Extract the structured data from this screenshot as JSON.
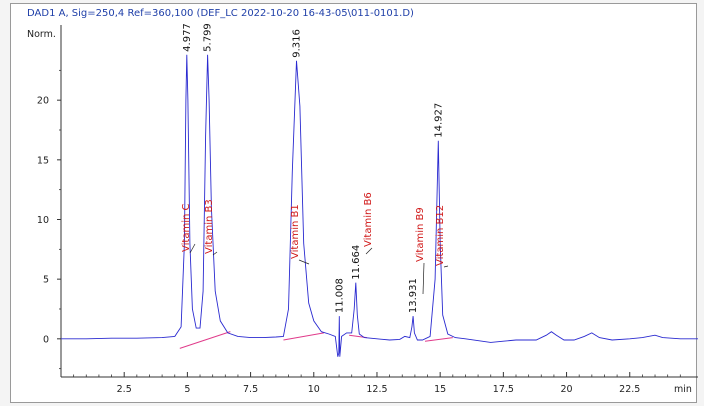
{
  "chart_data": {
    "type": "line",
    "title": "DAD1 A, Sig=250,4 Ref=360,100 (DEF_LC 2022-10-20 16-43-05\\011-0101.D)",
    "ylabel": "Norm.",
    "xlabel": "min",
    "xlim": [
      0,
      25.2
    ],
    "ylim": [
      -3.2,
      26.3
    ],
    "x_ticks": [
      "2.5",
      "5",
      "7.5",
      "10",
      "12.5",
      "15",
      "17.5",
      "20",
      "22.5"
    ],
    "x_tick_values": [
      2.5,
      5,
      7.5,
      10,
      12.5,
      15,
      17.5,
      20,
      22.5
    ],
    "y_ticks": [
      "0",
      "5",
      "10",
      "15",
      "20"
    ],
    "y_tick_values": [
      0,
      5,
      10,
      15,
      20
    ],
    "colors": {
      "trace": "#2a2ad0",
      "baseline": "#e03a8a",
      "compound_label": "#d01818",
      "title": "#1f3fa8"
    },
    "peaks": [
      {
        "label": "4.977",
        "rt": 4.977,
        "height": 23.8
      },
      {
        "label": "5.799",
        "rt": 5.799,
        "height": 23.8
      },
      {
        "label": "9.316",
        "rt": 9.316,
        "height": 23.3
      },
      {
        "label": "11.008",
        "rt": 11.008,
        "height": 1.9
      },
      {
        "label": "11.664",
        "rt": 11.664,
        "height": 4.7
      },
      {
        "label": "13.931",
        "rt": 13.931,
        "height": 1.9
      },
      {
        "label": "14.927",
        "rt": 14.927,
        "height": 16.6
      }
    ],
    "compounds": [
      {
        "name": "Vitamin C",
        "rt": 4.977
      },
      {
        "name": "Vitamin B3",
        "rt": 5.799
      },
      {
        "name": "Vitamin B1",
        "rt": 9.316
      },
      {
        "name": "Vitamin B6",
        "rt": 11.664
      },
      {
        "name": "Vitamin B9",
        "rt": 13.931
      },
      {
        "name": "Vitamin B12",
        "rt": 14.927
      }
    ],
    "trace": [
      [
        0.0,
        0.0
      ],
      [
        1.0,
        0.0
      ],
      [
        2.0,
        0.05
      ],
      [
        3.0,
        0.05
      ],
      [
        4.0,
        0.1
      ],
      [
        4.5,
        0.2
      ],
      [
        4.75,
        1.0
      ],
      [
        4.88,
        8.0
      ],
      [
        4.94,
        20.0
      ],
      [
        4.977,
        23.8
      ],
      [
        5.02,
        20.0
      ],
      [
        5.1,
        8.0
      ],
      [
        5.2,
        2.5
      ],
      [
        5.35,
        0.9
      ],
      [
        5.5,
        0.9
      ],
      [
        5.62,
        4.0
      ],
      [
        5.72,
        17.0
      ],
      [
        5.799,
        23.8
      ],
      [
        5.86,
        20.0
      ],
      [
        5.95,
        11.0
      ],
      [
        6.1,
        4.0
      ],
      [
        6.3,
        1.5
      ],
      [
        6.6,
        0.5
      ],
      [
        7.0,
        0.2
      ],
      [
        7.5,
        0.1
      ],
      [
        8.0,
        0.1
      ],
      [
        8.5,
        0.15
      ],
      [
        8.8,
        0.2
      ],
      [
        9.0,
        2.5
      ],
      [
        9.15,
        14.0
      ],
      [
        9.316,
        23.3
      ],
      [
        9.45,
        19.5
      ],
      [
        9.6,
        8.0
      ],
      [
        9.8,
        3.0
      ],
      [
        10.0,
        1.5
      ],
      [
        10.3,
        0.6
      ],
      [
        10.6,
        0.4
      ],
      [
        10.85,
        0.2
      ],
      [
        10.95,
        -1.5
      ],
      [
        10.99,
        -1.2
      ],
      [
        11.008,
        1.9
      ],
      [
        11.03,
        -1.5
      ],
      [
        11.1,
        0.2
      ],
      [
        11.3,
        0.5
      ],
      [
        11.5,
        0.5
      ],
      [
        11.6,
        2.5
      ],
      [
        11.664,
        4.7
      ],
      [
        11.72,
        2.0
      ],
      [
        11.8,
        0.4
      ],
      [
        12.0,
        0.1
      ],
      [
        12.5,
        0.0
      ],
      [
        13.0,
        -0.1
      ],
      [
        13.4,
        -0.05
      ],
      [
        13.6,
        0.2
      ],
      [
        13.8,
        0.1
      ],
      [
        13.88,
        1.0
      ],
      [
        13.931,
        1.9
      ],
      [
        13.98,
        0.5
      ],
      [
        14.1,
        -0.1
      ],
      [
        14.3,
        -0.1
      ],
      [
        14.6,
        0.2
      ],
      [
        14.8,
        5.0
      ],
      [
        14.927,
        16.6
      ],
      [
        15.0,
        8.0
      ],
      [
        15.1,
        2.0
      ],
      [
        15.3,
        0.4
      ],
      [
        15.6,
        0.1
      ],
      [
        16.0,
        0.0
      ],
      [
        17.0,
        -0.3
      ],
      [
        17.5,
        -0.2
      ],
      [
        18.0,
        -0.1
      ],
      [
        18.8,
        -0.1
      ],
      [
        19.2,
        0.3
      ],
      [
        19.4,
        0.6
      ],
      [
        19.6,
        0.3
      ],
      [
        19.9,
        -0.1
      ],
      [
        20.3,
        -0.1
      ],
      [
        20.7,
        0.2
      ],
      [
        21.0,
        0.5
      ],
      [
        21.3,
        0.1
      ],
      [
        21.8,
        -0.1
      ],
      [
        22.5,
        0.0
      ],
      [
        23.0,
        0.1
      ],
      [
        23.5,
        0.3
      ],
      [
        23.8,
        0.1
      ],
      [
        24.5,
        0.0
      ],
      [
        25.2,
        0.0
      ]
    ],
    "baseline_segments": [
      [
        [
          4.7,
          -0.8
        ],
        [
          6.7,
          0.6
        ]
      ],
      [
        [
          8.8,
          -0.1
        ],
        [
          10.4,
          0.5
        ]
      ],
      [
        [
          11.4,
          0.3
        ],
        [
          12.1,
          0.1
        ]
      ],
      [
        [
          14.4,
          -0.2
        ],
        [
          15.5,
          0.1
        ]
      ]
    ]
  }
}
